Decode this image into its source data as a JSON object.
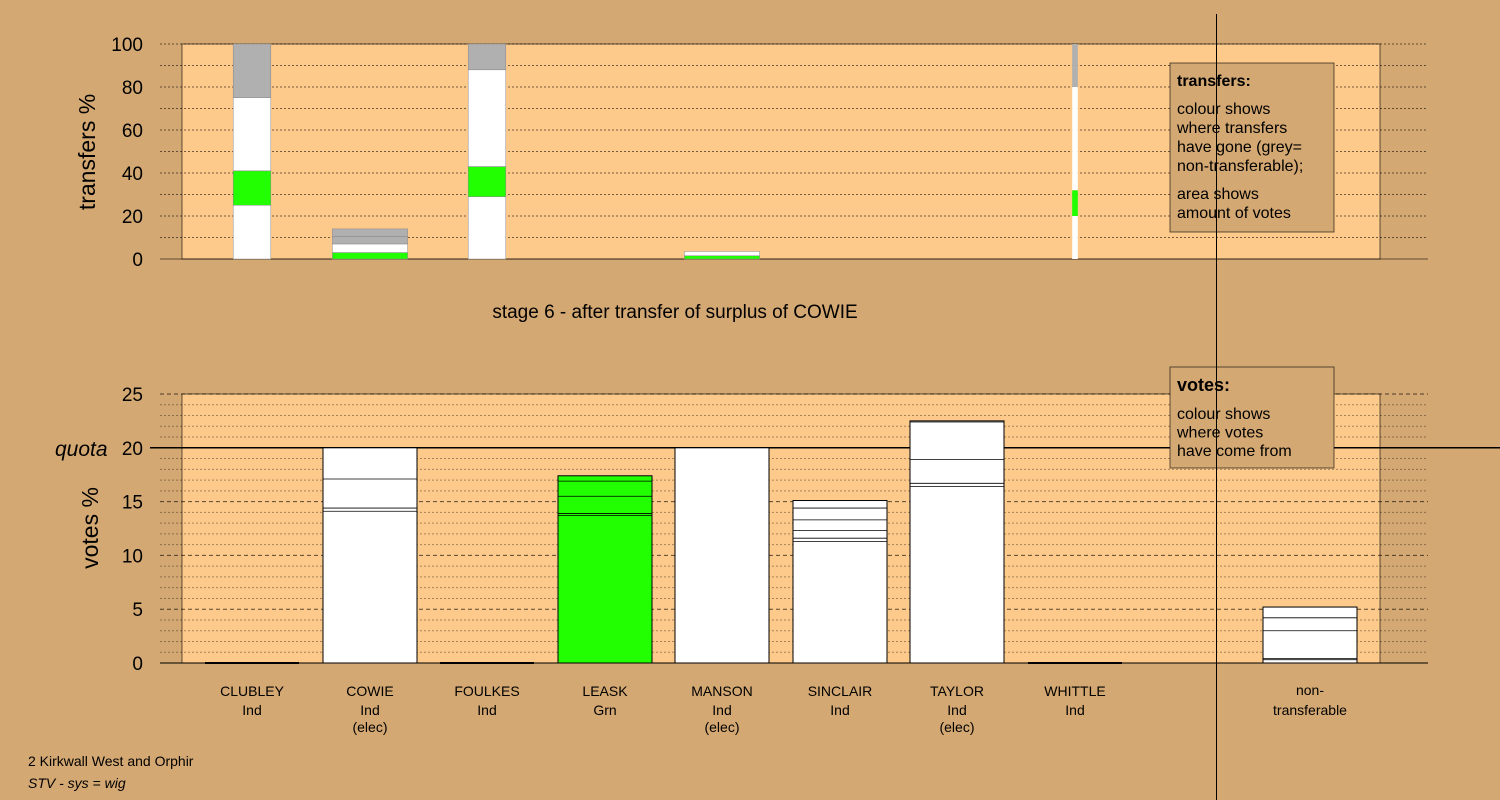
{
  "chart_data": {
    "type": "bar",
    "stage_title": "stage 6 - after transfer of surplus of COWIE",
    "top_chart": {
      "ylabel": "transfers %",
      "ylim": [
        0,
        100
      ],
      "yticks": [
        "0",
        "20",
        "40",
        "60",
        "80",
        "100"
      ],
      "legend": {
        "title": "transfers:",
        "lines1": [
          "colour shows",
          "where transfers",
          "have gone (grey=",
          "non-transferable);"
        ],
        "lines2": [
          "area shows",
          "amount of votes"
        ]
      },
      "bars": [
        {
          "candidate": "CLUBLEY",
          "width_share": 0.4,
          "segments": [
            {
              "value": 25,
              "color": "#ffffff"
            },
            {
              "value": 16,
              "color": "#22ff00"
            },
            {
              "value": 34,
              "color": "#ffffff"
            },
            {
              "value": 25,
              "color": "#b0b0b0"
            }
          ]
        },
        {
          "candidate": "COWIE",
          "width_share": 0.8,
          "segments": [
            {
              "value": 3,
              "color": "#22ff00"
            },
            {
              "value": 4,
              "color": "#ffffff"
            },
            {
              "value": 3.5,
              "color": "#b0b0b0"
            },
            {
              "value": 3.5,
              "color": "#b0b0b0"
            }
          ]
        },
        {
          "candidate": "FOULKES",
          "width_share": 0.4,
          "segments": [
            {
              "value": 29,
              "color": "#ffffff"
            },
            {
              "value": 14,
              "color": "#22ff00"
            },
            {
              "value": 45,
              "color": "#ffffff"
            },
            {
              "value": 12,
              "color": "#b0b0b0"
            }
          ]
        },
        {
          "candidate": "LEASK",
          "width_share": 0,
          "segments": []
        },
        {
          "candidate": "MANSON",
          "width_share": 0.8,
          "segments": [
            {
              "value": 1.5,
              "color": "#22ff00"
            },
            {
              "value": 2,
              "color": "#ffffff"
            }
          ]
        },
        {
          "candidate": "SINCLAIR",
          "width_share": 0,
          "segments": []
        },
        {
          "candidate": "TAYLOR",
          "width_share": 0,
          "segments": []
        },
        {
          "candidate": "WHITTLE",
          "width_share": 0.06,
          "segments": [
            {
              "value": 20,
              "color": "#ffffff"
            },
            {
              "value": 12,
              "color": "#22ff00"
            },
            {
              "value": 48,
              "color": "#ffffff"
            },
            {
              "value": 20,
              "color": "#b0b0b0"
            }
          ]
        }
      ]
    },
    "bottom_chart": {
      "ylabel": "votes %",
      "quota_label": "quota",
      "quota": 20,
      "ylim": [
        0,
        25
      ],
      "yticks": [
        "0",
        "5",
        "10",
        "15",
        "20",
        "25"
      ],
      "legend": {
        "title": "votes:",
        "lines": [
          "colour shows",
          "where votes",
          "have come from"
        ]
      },
      "bars": [
        {
          "candidate": "CLUBLEY",
          "party": "Ind",
          "elected": "",
          "color": "#ffffff",
          "total": 0,
          "lines": []
        },
        {
          "candidate": "COWIE",
          "party": "Ind",
          "elected": "(elec)",
          "color": "#ffffff",
          "total": 20,
          "lines": [
            14.1,
            14.4,
            17.1
          ]
        },
        {
          "candidate": "FOULKES",
          "party": "Ind",
          "elected": "",
          "color": "#ffffff",
          "total": 0,
          "lines": []
        },
        {
          "candidate": "LEASK",
          "party": "Grn",
          "elected": "",
          "color": "#22ff00",
          "total": 17.4,
          "lines": [
            13.7,
            13.9,
            15.5,
            16.9
          ]
        },
        {
          "candidate": "MANSON",
          "party": "Ind",
          "elected": "(elec)",
          "color": "#ffffff",
          "total": 20,
          "lines": []
        },
        {
          "candidate": "SINCLAIR",
          "party": "Ind",
          "elected": "",
          "color": "#ffffff",
          "total": 15.1,
          "lines": [
            11.3,
            11.6,
            12.3,
            13.3,
            14.4
          ]
        },
        {
          "candidate": "TAYLOR",
          "party": "Ind",
          "elected": "(elec)",
          "color": "#ffffff",
          "total": 22.5,
          "lines": [
            16.4,
            16.7,
            18.9,
            22.4
          ]
        },
        {
          "candidate": "WHITTLE",
          "party": "Ind",
          "elected": "",
          "color": "#ffffff",
          "total": 0,
          "lines": []
        }
      ],
      "nontransferable": {
        "label_lines": [
          "non-",
          "transferable"
        ],
        "total": 5.2,
        "lines": [
          0.3,
          0.4,
          3.0,
          4.2
        ]
      }
    }
  },
  "footer": {
    "line1": "2 Kirkwall West and Orphir",
    "line2": "STV - sys = wig"
  },
  "colors": {
    "background": "#d4a872",
    "plot": "#fdca8b",
    "green": "#22ff00",
    "grey": "#b0b0b0"
  }
}
